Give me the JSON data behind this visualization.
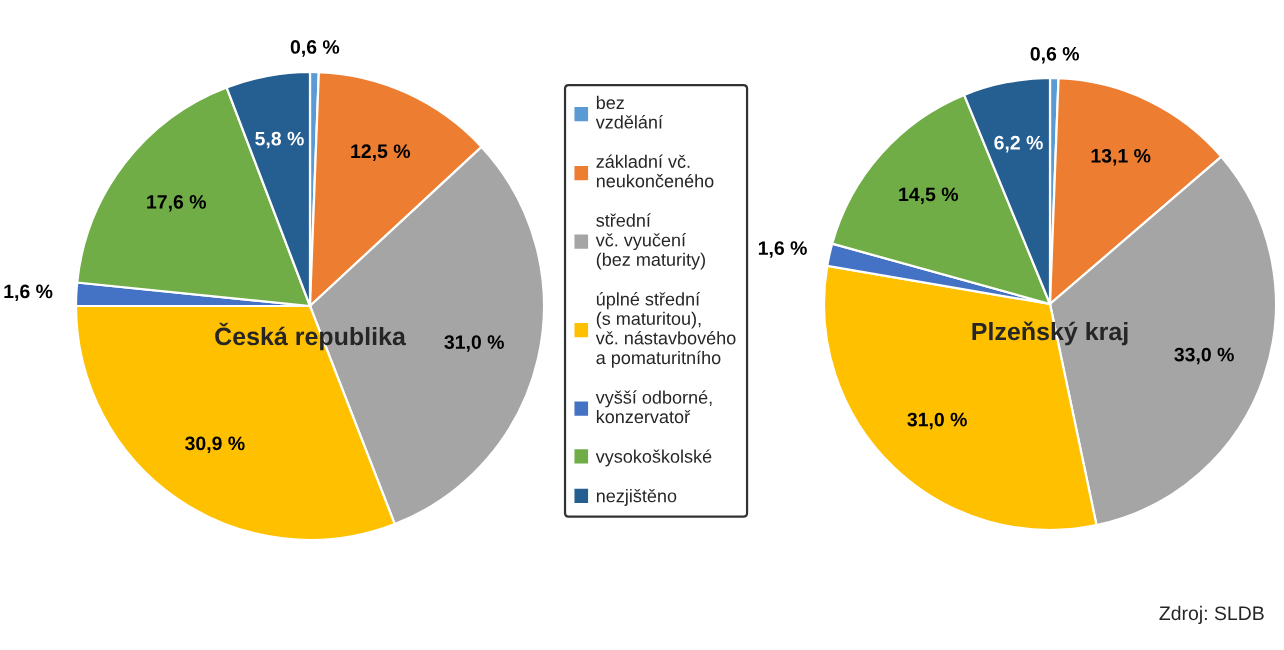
{
  "chart_data": [
    {
      "type": "pie",
      "title": "Česká republika",
      "categories": [
        "bez\nvzdělání",
        "základní vč.\nneukončeného",
        "střední\nvč. vyučení\n(bez maturity)",
        "úplné střední\n(s maturitou),\nvč. nástavbového\na pomaturitního",
        "vyšší odborné,\nkonzervatoř",
        "vysokoškolské",
        "nezjištěno"
      ],
      "values": [
        0.6,
        12.5,
        31.0,
        30.9,
        1.6,
        17.6,
        5.8
      ],
      "value_labels": [
        "0,6 %",
        "12,5 %",
        "31,0 %",
        "30,9 %",
        "1,6 %",
        "17,6 %",
        "5,8 %"
      ],
      "colors": [
        "#5b9bd5",
        "#ed7d31",
        "#a5a5a5",
        "#ffc000",
        "#4472c4",
        "#70ad47",
        "#255e91"
      ],
      "legend": "right"
    },
    {
      "type": "pie",
      "title": "Plzeňský kraj",
      "values": [
        0.6,
        13.1,
        33.0,
        31.0,
        1.6,
        14.5,
        6.2
      ],
      "value_labels": [
        "0,6 %",
        "13,1 %",
        "33,0 %",
        "31,0 %",
        "1,6 %",
        "14,5 %",
        "6,2 %"
      ],
      "colors": [
        "#5b9bd5",
        "#ed7d31",
        "#a5a5a5",
        "#ffc000",
        "#4472c4",
        "#70ad47",
        "#255e91"
      ],
      "annotations": [
        "Zdroj: SLDB"
      ]
    }
  ]
}
